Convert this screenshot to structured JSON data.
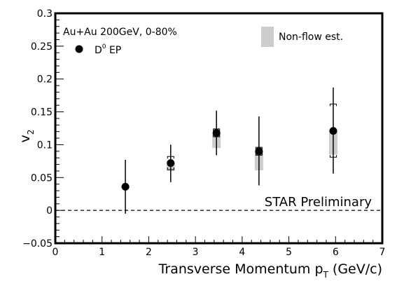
{
  "chart_data": {
    "type": "scatter",
    "title": "",
    "xlabel": "Transverse Momentum p",
    "xlabel_sub": "T",
    "xlabel_suffix": " (GeV/c)",
    "ylabel": "v",
    "ylabel_sub": "2",
    "xlim": [
      0,
      7
    ],
    "ylim": [
      -0.05,
      0.3
    ],
    "x_ticks": [
      0,
      1,
      2,
      3,
      4,
      5,
      6,
      7
    ],
    "y_ticks": [
      -0.05,
      0,
      0.05,
      0.1,
      0.15,
      0.2,
      0.25,
      0.3
    ],
    "y_tick_labels": [
      "−0.05",
      "0",
      "0.05",
      "0.1",
      "0.15",
      "0.2",
      "0.25",
      "0.3"
    ],
    "grid": false,
    "legend_position": "top-left",
    "series": [
      {
        "name": "D",
        "name_sup": "0",
        "name_suffix": " EP",
        "marker": "filled-circle",
        "color": "#000000",
        "points": [
          {
            "x": 1.5,
            "y": 0.036,
            "stat_low": -0.005,
            "stat_high": 0.077,
            "sys_low": 0.034,
            "sys_high": 0.038,
            "nonflow_low": 0.034,
            "nonflow_high": 0.036
          },
          {
            "x": 2.47,
            "y": 0.072,
            "stat_low": 0.043,
            "stat_high": 0.1,
            "sys_low": 0.062,
            "sys_high": 0.082,
            "nonflow_low": 0.06,
            "nonflow_high": 0.072
          },
          {
            "x": 3.45,
            "y": 0.118,
            "stat_low": 0.084,
            "stat_high": 0.152,
            "sys_low": 0.112,
            "sys_high": 0.124,
            "nonflow_low": 0.095,
            "nonflow_high": 0.118
          },
          {
            "x": 4.36,
            "y": 0.09,
            "stat_low": 0.038,
            "stat_high": 0.143,
            "sys_low": 0.084,
            "sys_high": 0.096,
            "nonflow_low": 0.061,
            "nonflow_high": 0.09
          },
          {
            "x": 5.95,
            "y": 0.121,
            "stat_low": 0.056,
            "stat_high": 0.187,
            "sys_low": 0.081,
            "sys_high": 0.162,
            "nonflow_low": 0.085,
            "nonflow_high": 0.121
          }
        ]
      }
    ],
    "nonflow_label": "Non-flow est.",
    "nonflow_color": "#cccccc",
    "annotations": {
      "system": "Au+Au 200GeV, 0-80%",
      "preliminary": "STAR Preliminary"
    },
    "zero_line": {
      "y": 0,
      "style": "dashed"
    }
  }
}
